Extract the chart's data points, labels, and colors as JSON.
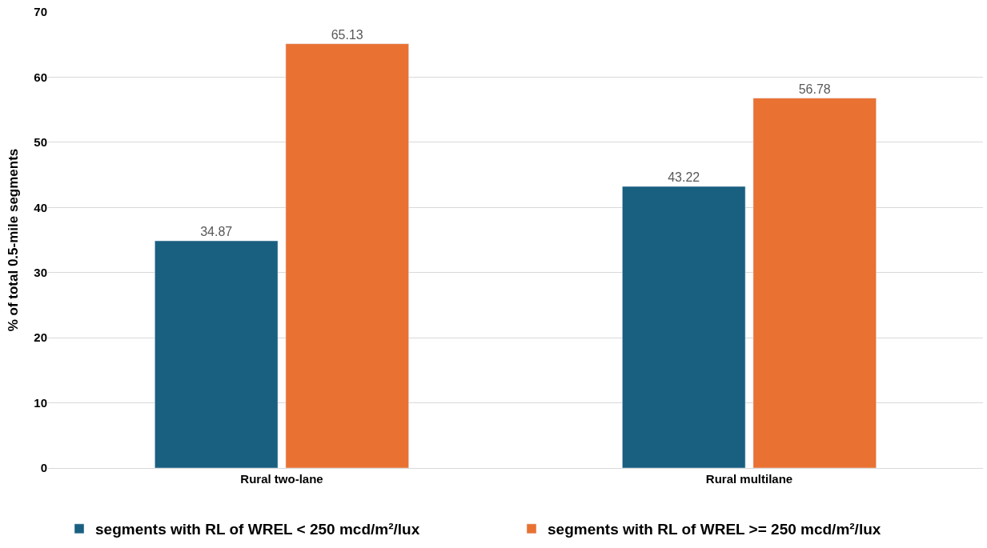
{
  "chart_data": {
    "type": "bar",
    "ylabel": "% of total 0.5-mile segments",
    "categories": [
      "Rural two-lane",
      "Rural multilane"
    ],
    "series": [
      {
        "name": "segments with RL of WREL < 250 mcd/m²/lux",
        "color": "#195f80",
        "values": [
          34.87,
          43.22
        ]
      },
      {
        "name": "segments with RL of WREL >= 250 mcd/m²/lux",
        "color": "#e97132",
        "values": [
          65.13,
          56.78
        ]
      }
    ],
    "ylim": [
      0,
      70
    ],
    "yticks": [
      0,
      10,
      20,
      30,
      40,
      50,
      60,
      70
    ],
    "grid": "y",
    "legend": "bottom",
    "data_labels": true
  }
}
